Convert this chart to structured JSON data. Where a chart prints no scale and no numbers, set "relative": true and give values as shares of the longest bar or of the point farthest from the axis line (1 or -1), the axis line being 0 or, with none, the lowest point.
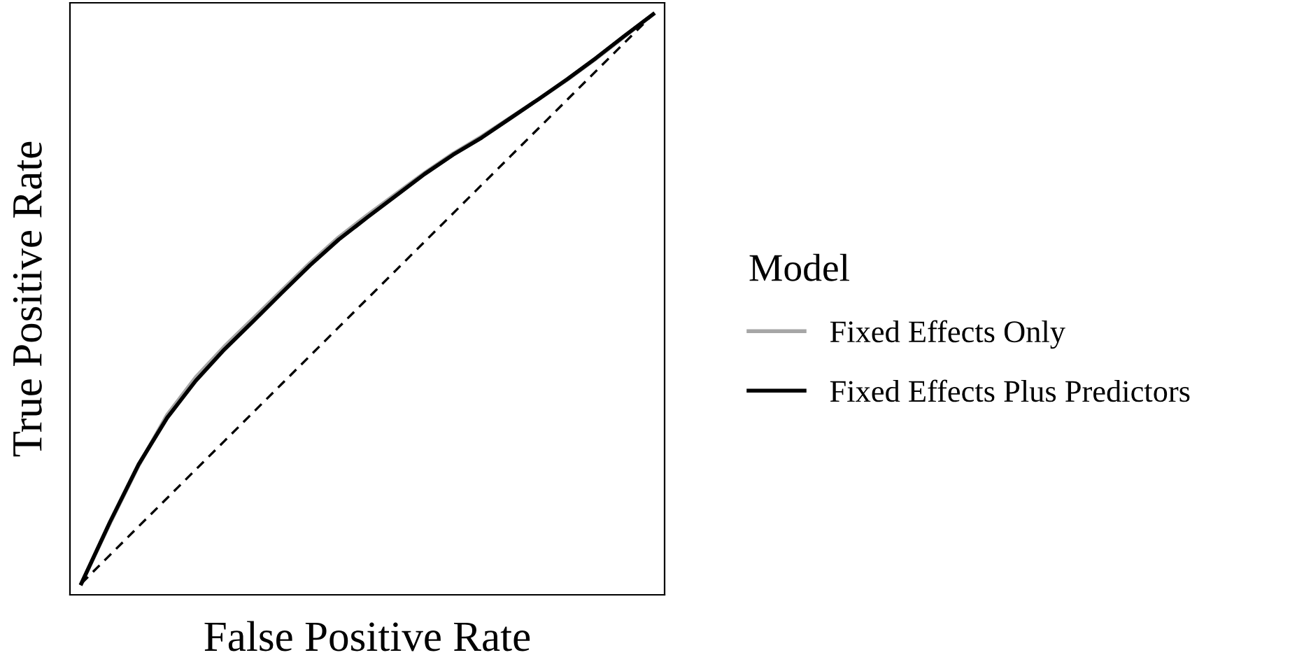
{
  "chart_data": {
    "type": "line",
    "relative": true,
    "xlabel": "False Positive Rate",
    "ylabel": "True Positive Rate",
    "legend_title": "Model",
    "legend": "right",
    "categories": [
      null,
      null,
      null,
      null,
      null,
      null,
      null,
      null,
      null,
      null,
      null,
      null,
      null,
      null,
      null,
      null,
      null,
      null,
      null,
      null,
      null
    ],
    "series": [
      {
        "name": "Fixed Effects Only",
        "color": "#a6a6a6",
        "values": [
          0,
          0.106,
          0.207,
          0.296,
          0.362,
          0.416,
          0.465,
          0.514,
          0.563,
          0.608,
          0.647,
          0.684,
          0.721,
          0.755,
          0.785,
          0.818,
          0.851,
          0.885,
          0.922,
          0.961,
          1
        ]
      },
      {
        "name": "Fixed Effects Plus Predictors",
        "color": "#000000",
        "values": [
          0,
          0.108,
          0.209,
          0.291,
          0.356,
          0.411,
          0.46,
          0.51,
          0.559,
          0.604,
          0.643,
          0.681,
          0.719,
          0.753,
          0.783,
          0.817,
          0.851,
          0.886,
          0.923,
          0.962,
          1
        ]
      },
      {
        "type": "line",
        "color": "#000000",
        "line_style": "dashed",
        "values": [
          0,
          0.05,
          0.1,
          0.15,
          0.2,
          0.25,
          0.3,
          0.35,
          0.4,
          0.45,
          0.5,
          0.55,
          0.6,
          0.65,
          0.7,
          0.75,
          0.8,
          0.85,
          0.9,
          0.95,
          1
        ]
      }
    ]
  }
}
